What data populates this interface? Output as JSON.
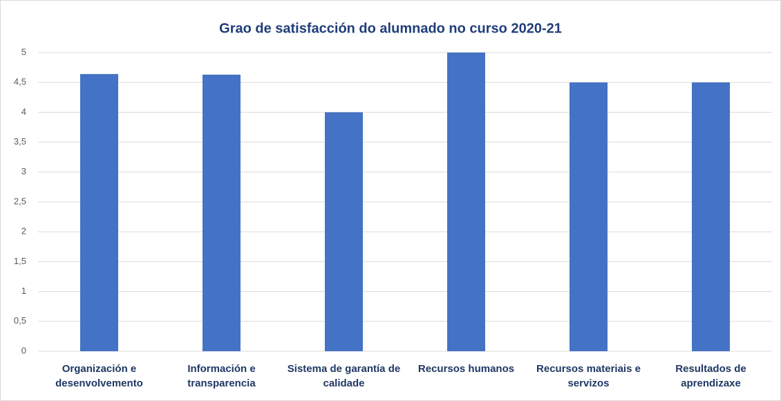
{
  "chart_data": {
    "type": "bar",
    "title": "Grao  de satisfacción do alumnado no curso 2020-21",
    "categories": [
      "Organización e desenvolvemento",
      "Información e transparencia",
      "Sistema de garantía de calidade",
      "Recursos humanos",
      "Recursos materiais e servizos",
      "Resultados de aprendizaxe"
    ],
    "values": [
      4.64,
      4.63,
      4,
      5,
      4.5,
      4.5
    ],
    "color": "#4472c4",
    "ylim": [
      0,
      5
    ],
    "yticks": [
      0,
      {
        "value": 0.5,
        "label": "0,5"
      },
      1,
      {
        "value": 1.5,
        "label": "1,5"
      },
      2,
      {
        "value": 2.5,
        "label": "2,5"
      },
      3,
      {
        "value": 3.5,
        "label": "3,5"
      },
      4,
      {
        "value": 4.5,
        "label": "4,5"
      },
      5
    ],
    "grid": true
  }
}
